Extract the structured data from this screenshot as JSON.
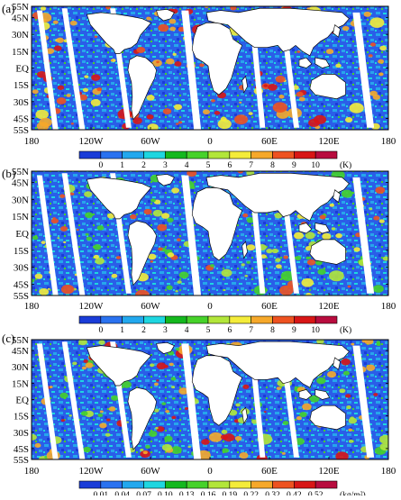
{
  "panels": [
    {
      "label": "(a)",
      "lat_labels": [
        "55N",
        "45N",
        "30N",
        "15N",
        "EQ",
        "15S",
        "30S",
        "45S",
        "55S"
      ],
      "lon_labels": [
        "180",
        "120W",
        "60W",
        "0",
        "60E",
        "120E",
        "180"
      ],
      "colorbar": {
        "ticks": [
          "0",
          "1",
          "2",
          "3",
          "4",
          "5",
          "6",
          "7",
          "8",
          "9",
          "10"
        ],
        "unit": "(K)",
        "colors": [
          "#1a3cd8",
          "#2a72f0",
          "#22a8ee",
          "#1ed6e0",
          "#14b81e",
          "#46d22a",
          "#b2e63a",
          "#f4ec3a",
          "#f6a82a",
          "#ee5220",
          "#d81616",
          "#b80c3e"
        ]
      }
    },
    {
      "label": "(b)",
      "lat_labels": [
        "55N",
        "45N",
        "30N",
        "15N",
        "EQ",
        "15S",
        "30S",
        "45S",
        "55S"
      ],
      "lon_labels": [
        "180",
        "120W",
        "60W",
        "0",
        "60E",
        "120E",
        "180"
      ],
      "colorbar": {
        "ticks": [
          "0",
          "1",
          "2",
          "3",
          "4",
          "5",
          "6",
          "7",
          "8",
          "9",
          "10"
        ],
        "unit": "(K)",
        "colors": [
          "#1a3cd8",
          "#2a72f0",
          "#22a8ee",
          "#1ed6e0",
          "#14b81e",
          "#46d22a",
          "#b2e63a",
          "#f4ec3a",
          "#f6a82a",
          "#ee5220",
          "#d81616",
          "#b80c3e"
        ]
      }
    },
    {
      "label": "(c)",
      "lat_labels": [
        "55N",
        "45N",
        "30N",
        "15N",
        "EQ",
        "15S",
        "30S",
        "45S",
        "55S"
      ],
      "lon_labels": [
        "180",
        "120W",
        "60W",
        "0",
        "60E",
        "120E",
        "180"
      ],
      "colorbar": {
        "ticks": [
          "0.01",
          "0.04",
          "0.07",
          "0.10",
          "0.13",
          "0.16",
          "0.19",
          "0.22",
          "0.32",
          "0.42",
          "0.52"
        ],
        "unit": "(kg/m²)",
        "colors": [
          "#1a3cd8",
          "#2a72f0",
          "#22a8ee",
          "#1ed6e0",
          "#14b81e",
          "#46d22a",
          "#b2e63a",
          "#f4ec3a",
          "#f6a82a",
          "#ee5220",
          "#d81616",
          "#b80c3e"
        ]
      }
    }
  ]
}
